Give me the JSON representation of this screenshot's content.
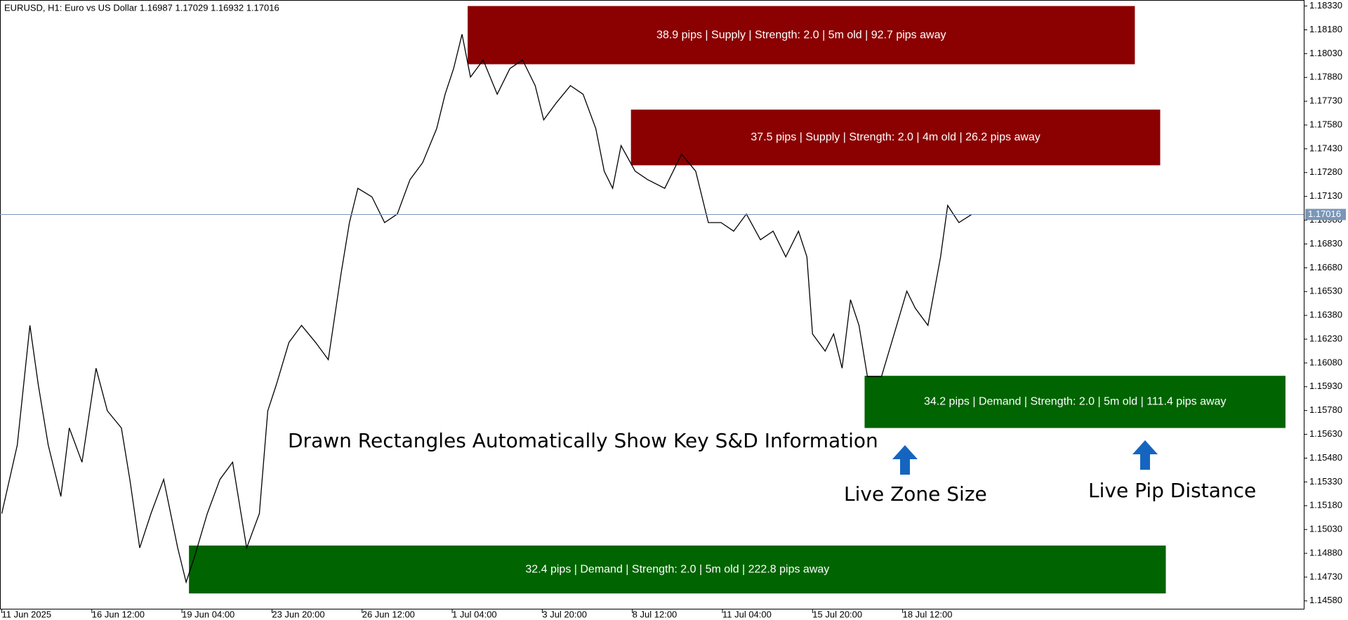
{
  "chart_data": {
    "type": "price",
    "title": "EURUSD, H1:  Euro vs US Dollar  1.16987 1.17029 1.16932 1.17016",
    "xlim": [
      0,
      925
    ],
    "ylim": [
      1.14526,
      1.18368
    ],
    "xticks": [
      {
        "value": 0,
        "label": "11 Jun 2025"
      },
      {
        "value": 64,
        "label": "16 Jun 12:00"
      },
      {
        "value": 128,
        "label": "19 Jun 04:00"
      },
      {
        "value": 192,
        "label": "23 Jun 20:00"
      },
      {
        "value": 256,
        "label": "26 Jun 12:00"
      },
      {
        "value": 320,
        "label": "1 Jul 04:00"
      },
      {
        "value": 384,
        "label": "3 Jul 20:00"
      },
      {
        "value": 448,
        "label": "8 Jul 12:00"
      },
      {
        "value": 512,
        "label": "11 Jul 04:00"
      },
      {
        "value": 576,
        "label": "15 Jul 20:00"
      },
      {
        "value": 640,
        "label": "18 Jul 12:00"
      }
    ],
    "yticks": [
      {
        "value": 1.1833,
        "label": "1.18330"
      },
      {
        "value": 1.1818,
        "label": "1.18180"
      },
      {
        "value": 1.1803,
        "label": "1.18030"
      },
      {
        "value": 1.1788,
        "label": "1.17880"
      },
      {
        "value": 1.1773,
        "label": "1.17730"
      },
      {
        "value": 1.1758,
        "label": "1.17580"
      },
      {
        "value": 1.1743,
        "label": "1.17430"
      },
      {
        "value": 1.1728,
        "label": "1.17280"
      },
      {
        "value": 1.1713,
        "label": "1.17130"
      },
      {
        "value": 1.1698,
        "label": "1.16980"
      },
      {
        "value": 1.1683,
        "label": "1.16830"
      },
      {
        "value": 1.1668,
        "label": "1.16680"
      },
      {
        "value": 1.1653,
        "label": "1.16530"
      },
      {
        "value": 1.1638,
        "label": "1.16380"
      },
      {
        "value": 1.1623,
        "label": "1.16230"
      },
      {
        "value": 1.1608,
        "label": "1.16080"
      },
      {
        "value": 1.1593,
        "label": "1.15930"
      },
      {
        "value": 1.1578,
        "label": "1.15780"
      },
      {
        "value": 1.1563,
        "label": "1.15630"
      },
      {
        "value": 1.1548,
        "label": "1.15480"
      },
      {
        "value": 1.1533,
        "label": "1.15330"
      },
      {
        "value": 1.1518,
        "label": "1.15180"
      },
      {
        "value": 1.1503,
        "label": "1.15030"
      },
      {
        "value": 1.1488,
        "label": "1.14880"
      },
      {
        "value": 1.1473,
        "label": "1.14730"
      },
      {
        "value": 1.1458,
        "label": "1.14580"
      }
    ],
    "current_price": {
      "value": 1.17016,
      "label": "1.17016"
    },
    "series": [
      {
        "name": "EURUSD",
        "color": "#000000",
        "x": [
          0,
          11,
          20,
          26,
          33,
          42,
          48,
          57,
          67,
          75,
          85,
          91,
          98,
          106,
          115,
          125,
          131,
          137,
          146,
          155,
          164,
          174,
          183,
          189,
          195,
          204,
          213,
          223,
          232,
          241,
          247,
          253,
          263,
          272,
          281,
          290,
          299,
          309,
          315,
          321,
          327,
          333,
          342,
          352,
          361,
          370,
          379,
          385,
          394,
          404,
          413,
          422,
          428,
          434,
          440,
          450,
          459,
          471,
          483,
          493,
          502,
          511,
          520,
          529,
          539,
          548,
          557,
          566,
          572,
          576,
          585,
          591,
          597,
          603,
          609,
          615,
          625,
          634,
          643,
          649,
          658,
          667,
          672,
          680,
          689
        ],
        "values": [
          1.1513,
          1.15562,
          1.16317,
          1.1594,
          1.15562,
          1.15238,
          1.1567,
          1.15454,
          1.16047,
          1.15778,
          1.1567,
          1.15346,
          1.14914,
          1.1513,
          1.15346,
          1.14914,
          1.14698,
          1.1486,
          1.1513,
          1.15346,
          1.15454,
          1.14914,
          1.1513,
          1.15778,
          1.1594,
          1.16209,
          1.16317,
          1.16209,
          1.16101,
          1.16641,
          1.16965,
          1.17181,
          1.17127,
          1.16965,
          1.17019,
          1.17235,
          1.17343,
          1.17558,
          1.17774,
          1.17936,
          1.18152,
          1.17882,
          1.1799,
          1.17774,
          1.17936,
          1.1799,
          1.17828,
          1.17612,
          1.1772,
          1.17828,
          1.17774,
          1.17558,
          1.17289,
          1.17181,
          1.1745,
          1.17289,
          1.17235,
          1.17181,
          1.17396,
          1.17289,
          1.16965,
          1.16965,
          1.16911,
          1.17019,
          1.16857,
          1.16911,
          1.16749,
          1.16911,
          1.16749,
          1.16263,
          1.16155,
          1.16263,
          1.16047,
          1.16479,
          1.16317,
          1.15994,
          1.15994,
          1.16263,
          1.16533,
          1.16425,
          1.16317,
          1.16749,
          1.17073,
          1.16965,
          1.17016
        ]
      }
    ],
    "zones": [
      {
        "label": "38.9 pips | Supply | Strength: 2.0 | 5m old | 92.7 pips away",
        "top": 1.1833,
        "bottom": 1.17963,
        "start": 331,
        "end": 805,
        "color": "#8b0000"
      },
      {
        "label": "37.5 pips | Supply | Strength: 2.0 | 4m old | 26.2 pips away",
        "top": 1.17677,
        "bottom": 1.17326,
        "start": 447,
        "end": 823,
        "color": "#8b0000"
      },
      {
        "label": "34.2 pips | Demand | Strength: 2.0 | 5m old | 111.4 pips away",
        "top": 1.15999,
        "bottom": 1.1567,
        "start": 613,
        "end": 912,
        "color": "#006400"
      },
      {
        "label": "32.4 pips | Demand | Strength: 2.0 | 5m old | 222.8 pips away",
        "top": 1.14929,
        "bottom": 1.14627,
        "start": 133,
        "end": 827,
        "color": "#006400"
      }
    ],
    "annotations": [
      "Drawn Rectangles Automatically Show Key S&D Information",
      "Live Zone Size",
      "Live Pip Distance"
    ]
  }
}
